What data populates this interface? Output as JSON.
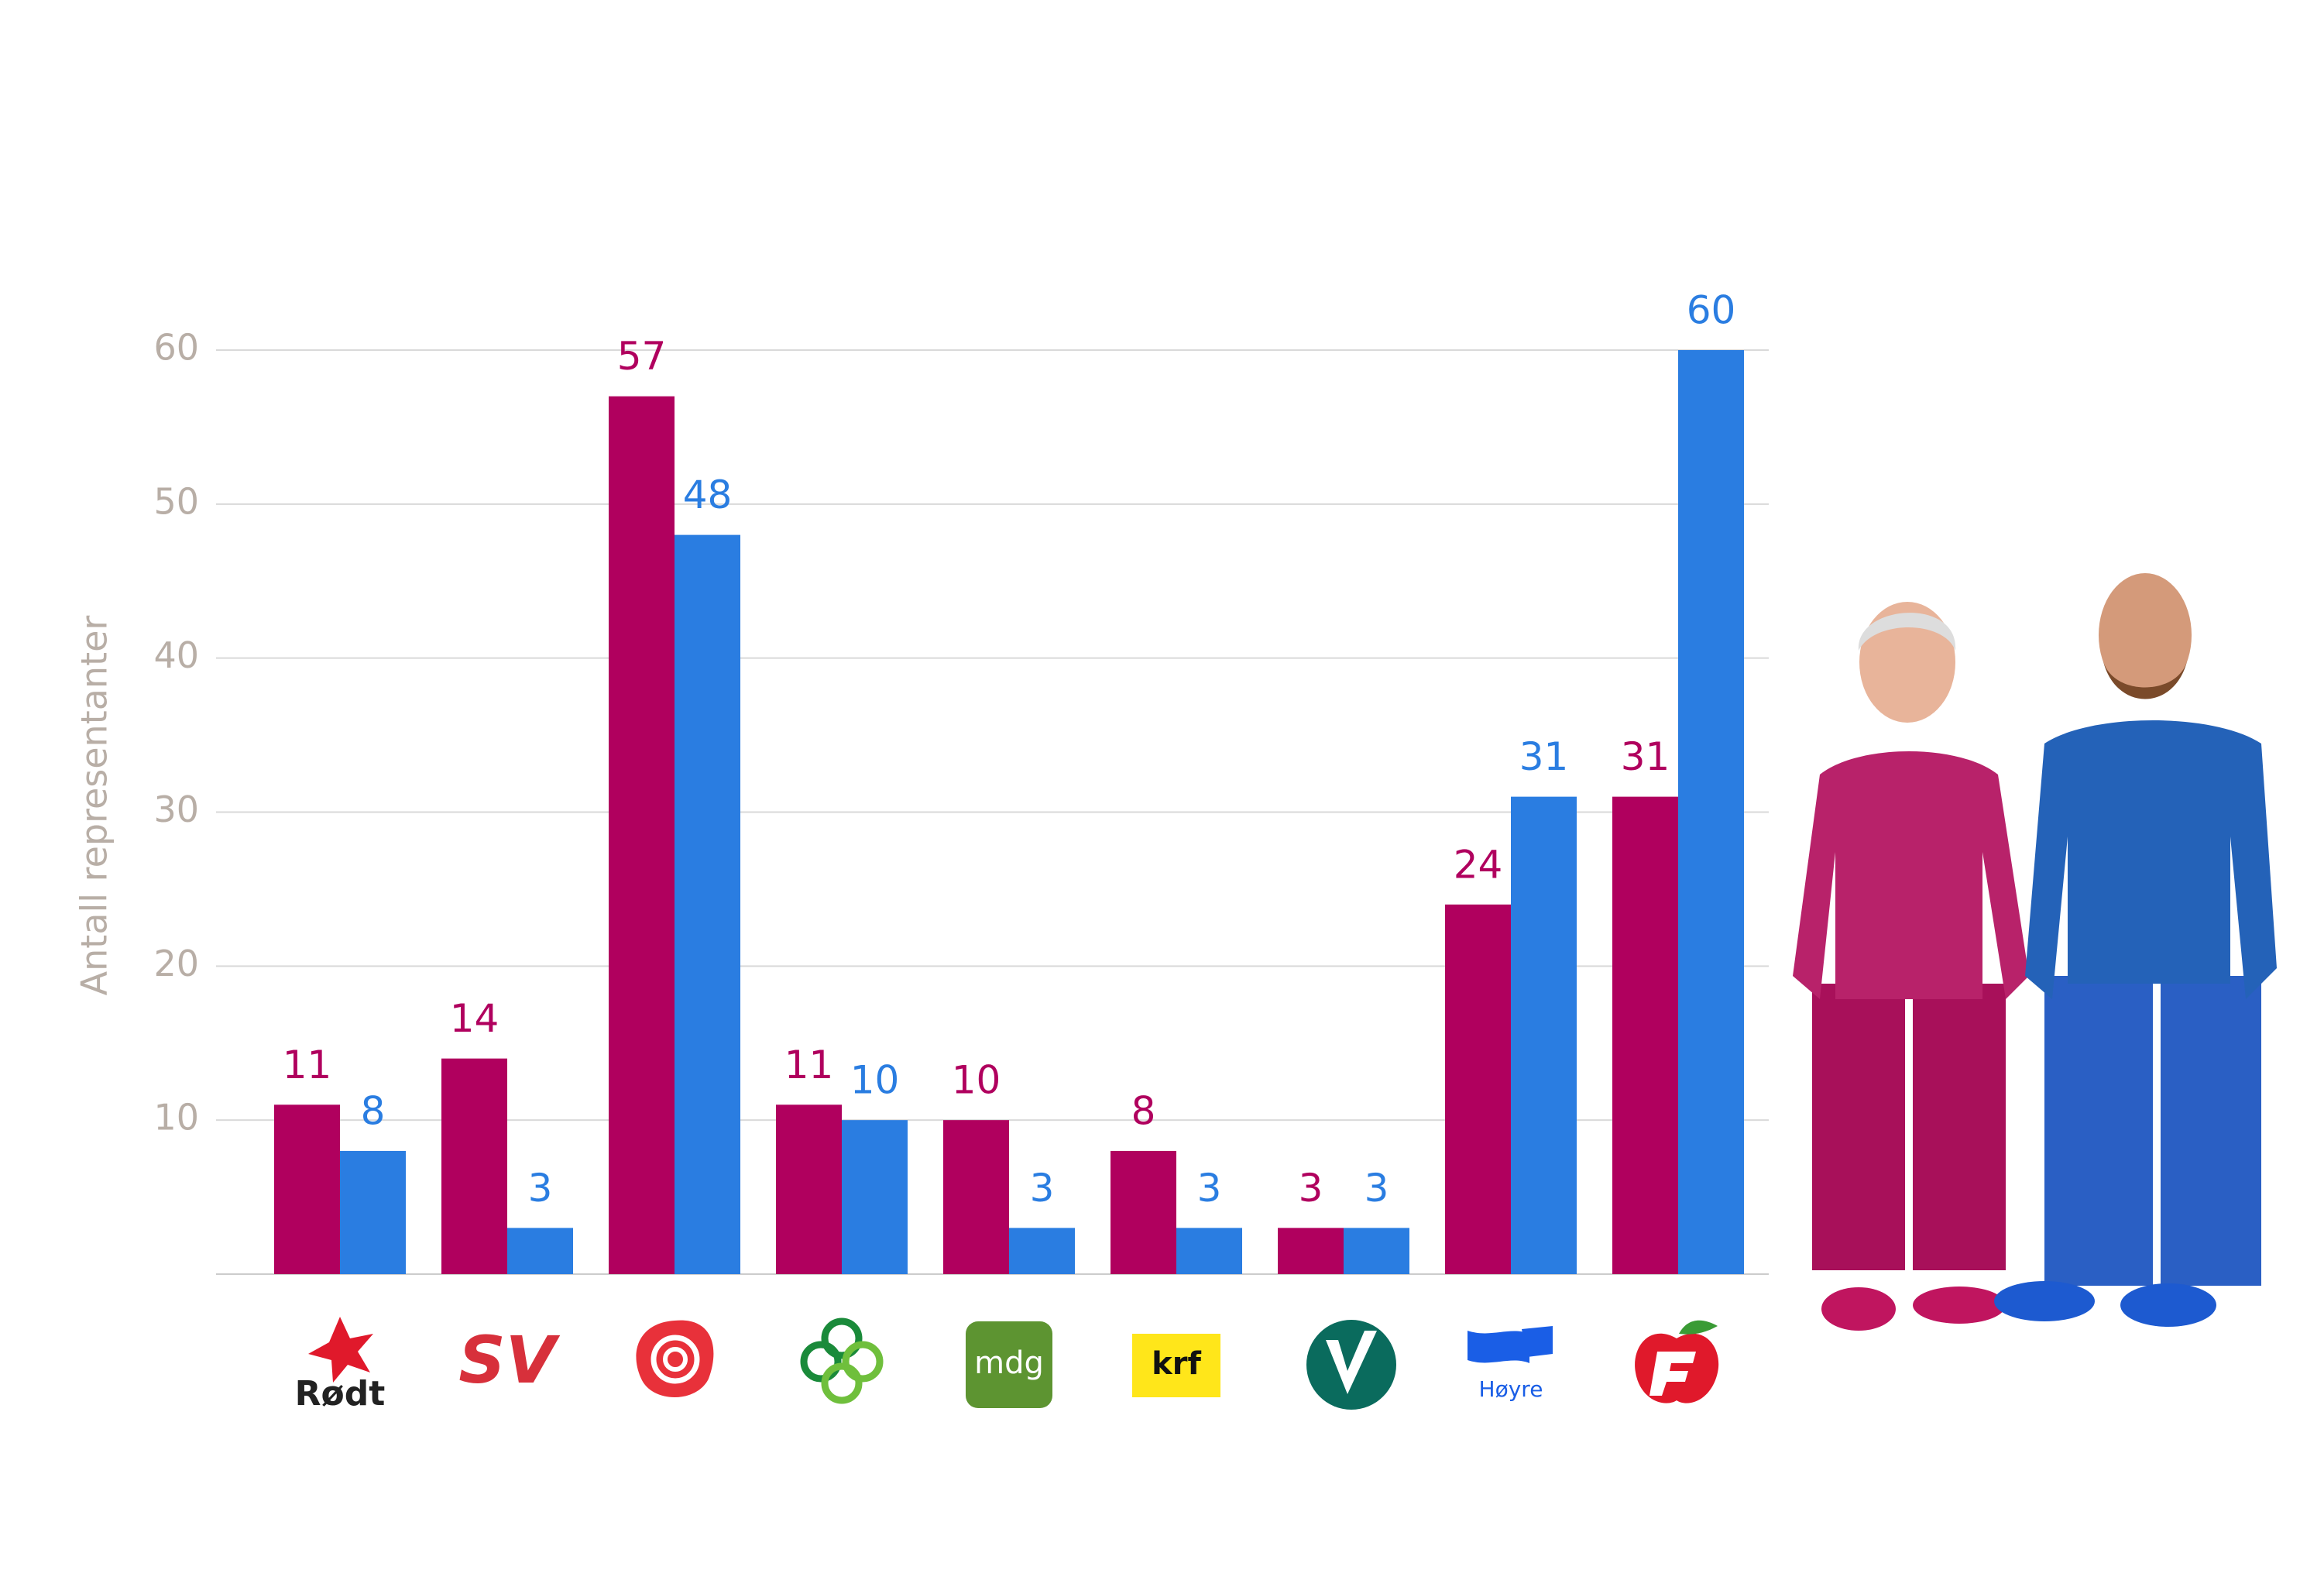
{
  "chart_data": {
    "type": "bar",
    "y_label": "Antall representanter",
    "categories": [
      "Rødt",
      "SV",
      null,
      null,
      "mdg",
      "krf",
      null,
      "Høyre",
      null
    ],
    "series": [
      {
        "color": "#b0005e",
        "values": [
          11,
          14,
          57,
          11,
          10,
          8,
          3,
          24,
          31
        ]
      },
      {
        "color": "#2a7de1",
        "values": [
          8,
          3,
          48,
          10,
          3,
          3,
          3,
          31,
          60
        ]
      }
    ],
    "ylim": [
      0,
      60
    ],
    "yticks": [
      10,
      20,
      30,
      40,
      50,
      60
    ],
    "grid": true
  }
}
